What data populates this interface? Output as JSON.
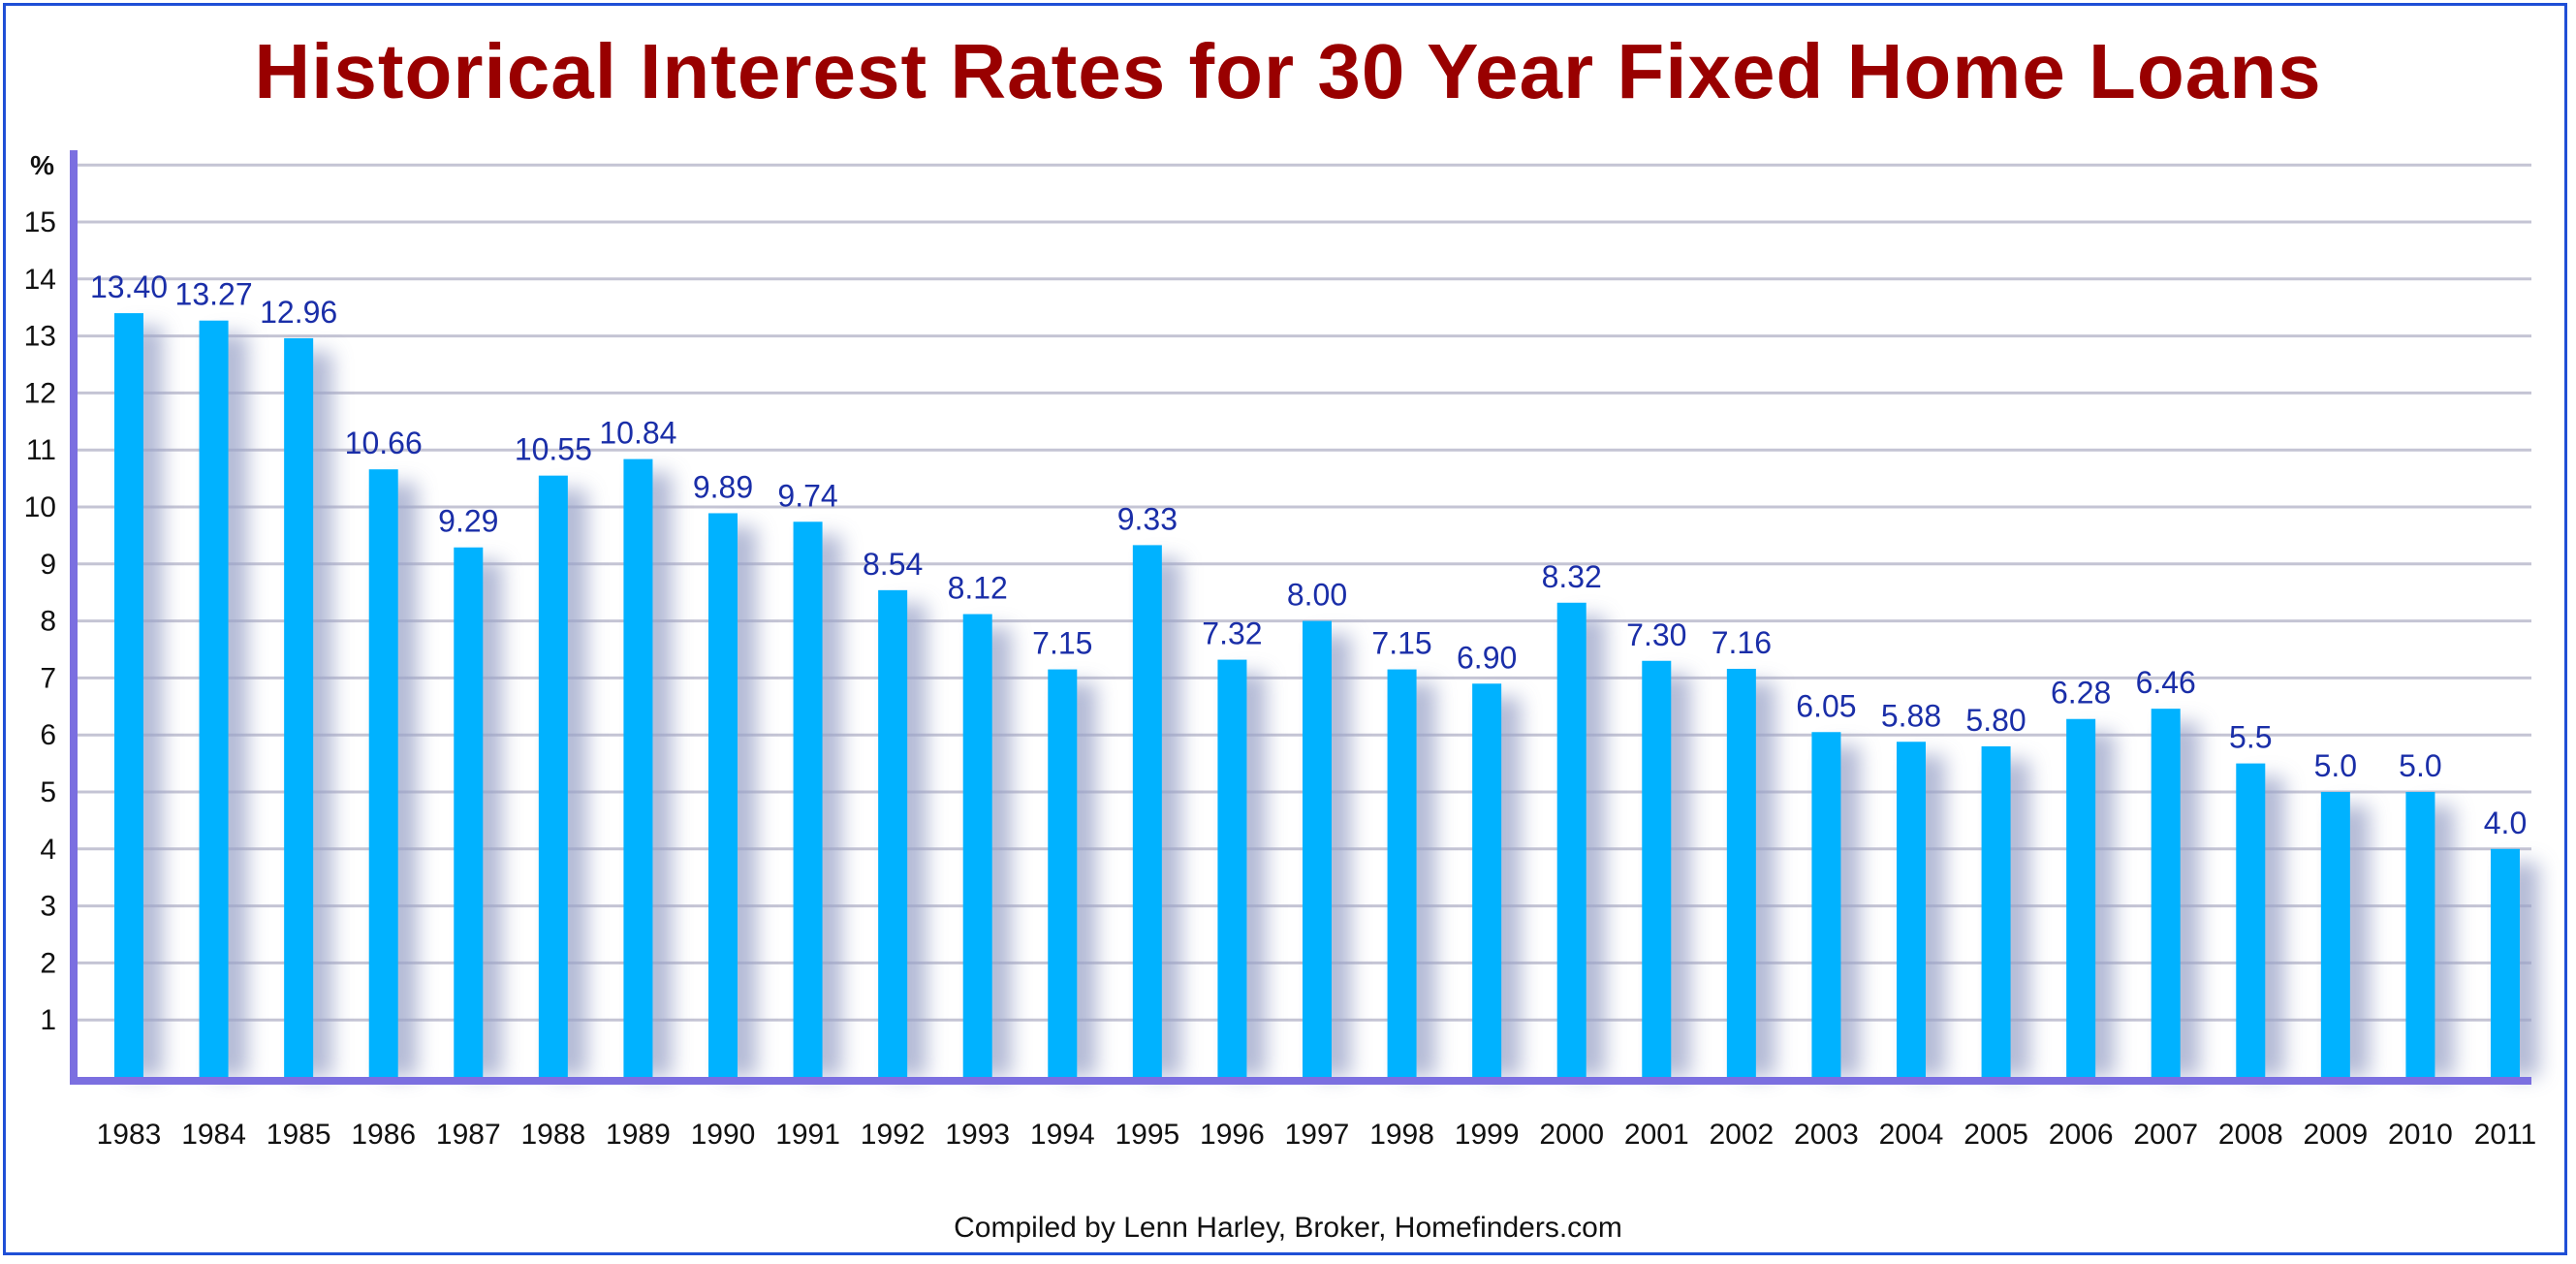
{
  "chart_data": {
    "type": "bar",
    "title": "Historical Interest Rates for 30 Year Fixed Home Loans",
    "ylabel": "%",
    "xlabel": "",
    "ylim": [
      0,
      16
    ],
    "yticks": [
      1,
      2,
      3,
      4,
      5,
      6,
      7,
      8,
      9,
      10,
      11,
      12,
      13,
      14,
      15
    ],
    "grid": true,
    "categories": [
      "1983",
      "1984",
      "1985",
      "1986",
      "1987",
      "1988",
      "1989",
      "1990",
      "1991",
      "1992",
      "1993",
      "1994",
      "1995",
      "1996",
      "1997",
      "1998",
      "1999",
      "2000",
      "2001",
      "2002",
      "2003",
      "2004",
      "2005",
      "2006",
      "2007",
      "2008",
      "2009",
      "2010",
      "2011"
    ],
    "values": [
      13.4,
      13.27,
      12.96,
      10.66,
      9.29,
      10.55,
      10.84,
      9.89,
      9.74,
      8.54,
      8.12,
      7.15,
      9.33,
      7.32,
      8.0,
      7.15,
      6.9,
      8.32,
      7.3,
      7.16,
      6.05,
      5.88,
      5.8,
      6.28,
      6.46,
      5.5,
      5.0,
      5.0,
      4.0
    ],
    "value_labels": [
      "13.40",
      "13.27",
      "12.96",
      "10.66",
      "9.29",
      "10.55",
      "10.84",
      "9.89",
      "9.74",
      "8.54",
      "8.12",
      "7.15",
      "9.33",
      "7.32",
      "8.00",
      "7.15",
      "6.90",
      "8.32",
      "7.30",
      "7.16",
      "6.05",
      "5.88",
      "5.80",
      "6.28",
      "6.46",
      "5.5",
      "5.0",
      "5.0",
      "4.0"
    ],
    "credit": "Compiled by Lenn Harley, Broker, Homefinders.com",
    "colors": {
      "bar": "#00b2ff",
      "bar_shadow": "#9aa3c8",
      "axis": "#7b6fe0",
      "grid": "#c4c4d4",
      "title": "#990000",
      "label": "#1a2ea8"
    }
  }
}
